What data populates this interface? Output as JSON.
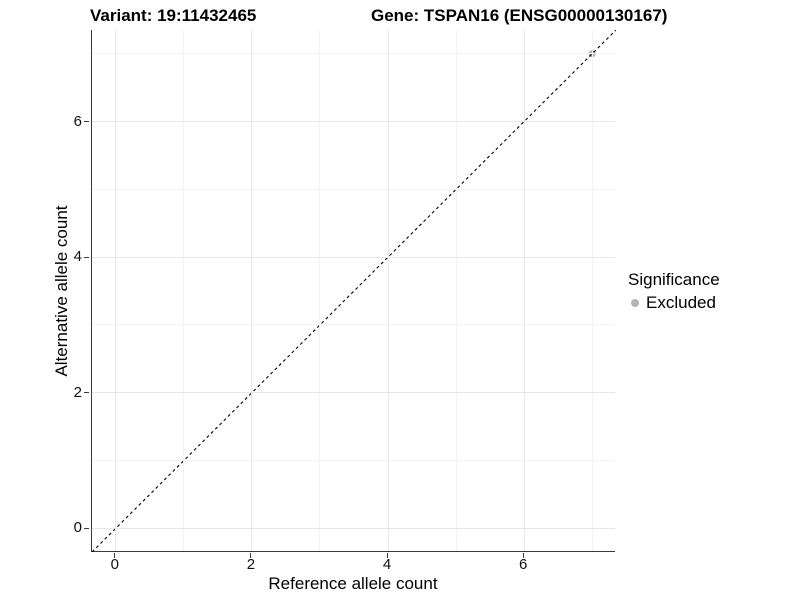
{
  "chart_data": {
    "type": "scatter",
    "titles": {
      "left": "Variant: 19:11432465",
      "right": "Gene: TSPAN16 (ENSG00000130167)"
    },
    "xlabel": "Reference allele count",
    "ylabel": "Alternative allele count",
    "xlim": [
      -0.35,
      7.35
    ],
    "ylim": [
      -0.35,
      7.35
    ],
    "x_major_ticks": [
      0,
      2,
      4,
      6
    ],
    "y_major_ticks": [
      0,
      2,
      4,
      6
    ],
    "x_minor_gridlines": [
      1,
      3,
      5,
      7
    ],
    "y_minor_gridlines": [
      1,
      3,
      5,
      7
    ],
    "grid": "on",
    "reference_line": {
      "type": "identity",
      "style": "dashed",
      "color": "#000000",
      "x1": -0.35,
      "y1": -0.35,
      "x2": 7.35,
      "y2": 7.35
    },
    "series": [
      {
        "name": "Excluded",
        "color": "#b4b4b4",
        "marker": "circle",
        "points": [
          [
            7,
            7
          ]
        ]
      }
    ],
    "legend": {
      "title": "Significance",
      "position": "right",
      "entries": [
        {
          "label": "Excluded",
          "color": "#b4b4b4",
          "marker": "circle"
        }
      ]
    }
  },
  "colors": {
    "background": "#ffffff",
    "axis_line": "#3a3a3a",
    "grid_major": "#e7e7e7",
    "grid_minor": "#f3f3f3",
    "tick_label": "#111111",
    "title_text": "#000000"
  }
}
